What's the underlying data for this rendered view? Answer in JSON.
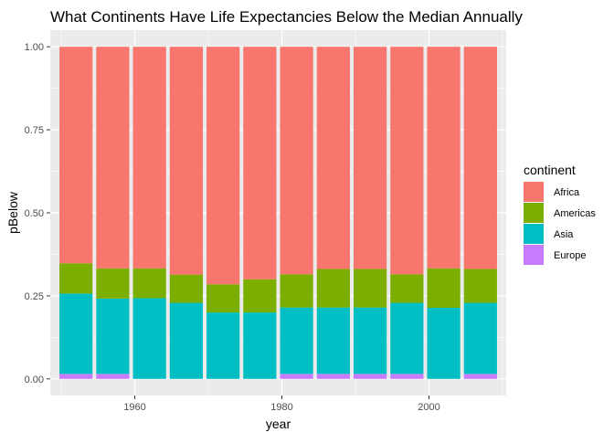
{
  "chart_data": {
    "type": "bar",
    "stacked": true,
    "title": "What Continents Have Life Expectancies Below the Median Annually",
    "xlabel": "year",
    "ylabel": "pBelow",
    "xlim": [
      1948.5,
      2010.5
    ],
    "ylim": [
      -0.05,
      1.05
    ],
    "x": [
      1952,
      1957,
      1962,
      1967,
      1972,
      1977,
      1982,
      1987,
      1992,
      1997,
      2002,
      2007
    ],
    "x_ticks": [
      1960,
      1980,
      2000
    ],
    "x_tick_labels": [
      "1960",
      "1980",
      "2000"
    ],
    "y_ticks": [
      0,
      0.25,
      0.5,
      0.75,
      1.0
    ],
    "y_tick_labels": [
      "0.00",
      "0.25",
      "0.50",
      "0.75",
      "1.00"
    ],
    "grid": true,
    "legend": {
      "title": "continent",
      "position": "right"
    },
    "series": [
      {
        "name": "Europe",
        "color": "#C77CFF",
        "values": [
          0.015,
          0.015,
          0,
          0,
          0,
          0,
          0.015,
          0.015,
          0.015,
          0.015,
          0,
          0.015
        ]
      },
      {
        "name": "Asia",
        "color": "#00BFC4",
        "values": [
          0.242,
          0.227,
          0.243,
          0.229,
          0.2,
          0.2,
          0.2,
          0.2,
          0.2,
          0.214,
          0.214,
          0.214
        ]
      },
      {
        "name": "Americas",
        "color": "#7CAE00",
        "values": [
          0.091,
          0.091,
          0.09,
          0.085,
          0.085,
          0.1,
          0.1,
          0.116,
          0.116,
          0.086,
          0.119,
          0.102
        ]
      },
      {
        "name": "Africa",
        "color": "#F8766D",
        "values": [
          0.652,
          0.667,
          0.667,
          0.686,
          0.715,
          0.7,
          0.685,
          0.669,
          0.669,
          0.685,
          0.667,
          0.669
        ]
      }
    ],
    "legend_order": [
      "Africa",
      "Americas",
      "Asia",
      "Europe"
    ]
  }
}
